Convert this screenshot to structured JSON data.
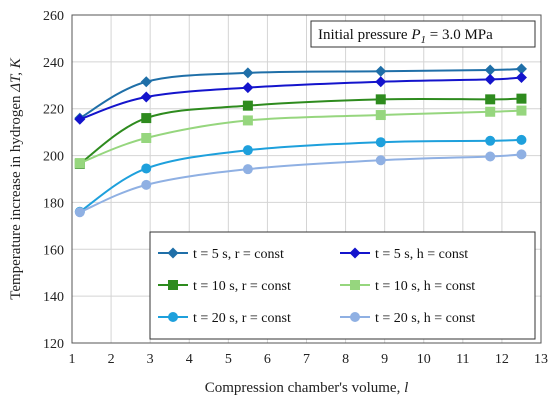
{
  "chart_data": {
    "type": "line",
    "annotation": {
      "prefix": "Initial pressure ",
      "symbol": "P",
      "subscript": "1",
      "suffix": " = 3.0 MPa"
    },
    "xlabel": {
      "text": "Compression chamber's volume, ",
      "unit": "l"
    },
    "ylabel": {
      "text": "Temperature increase in hydrogen ",
      "symbol": "ΔT, K"
    },
    "xlim": [
      1,
      13
    ],
    "ylim": [
      120,
      260
    ],
    "xticks": [
      1,
      2,
      3,
      4,
      5,
      6,
      7,
      8,
      9,
      10,
      11,
      12,
      13
    ],
    "yticks": [
      120,
      140,
      160,
      180,
      200,
      220,
      240,
      260
    ],
    "grid": true,
    "legend_position": "bottom-right",
    "series": [
      {
        "name": "t = 5 s, r = const",
        "color": "#1f6fa8",
        "marker": "diamond",
        "x": [
          1.2,
          2.9,
          5.5,
          8.9,
          11.7,
          12.5
        ],
        "y": [
          216,
          231.5,
          235.3,
          236,
          236.5,
          237
        ]
      },
      {
        "name": "t = 5 s, h = const",
        "color": "#1414cc",
        "marker": "diamond",
        "x": [
          1.2,
          2.9,
          5.5,
          8.9,
          11.7,
          12.5
        ],
        "y": [
          215.5,
          225,
          229,
          231.5,
          232.5,
          233.3
        ]
      },
      {
        "name": "t = 10 s, r = const",
        "color": "#2e8b1e",
        "marker": "square",
        "x": [
          1.2,
          2.9,
          5.5,
          8.9,
          11.7,
          12.5
        ],
        "y": [
          196.5,
          216,
          221.3,
          224,
          224,
          224.3
        ]
      },
      {
        "name": "t = 10 s, h = const",
        "color": "#96d67e",
        "marker": "square",
        "x": [
          1.2,
          2.9,
          5.5,
          8.9,
          11.7,
          12.5
        ],
        "y": [
          196.8,
          207.5,
          215,
          217.3,
          218.7,
          219.2
        ]
      },
      {
        "name": "t = 20 s, r = const",
        "color": "#1ea0dc",
        "marker": "circle",
        "x": [
          1.2,
          2.9,
          5.5,
          8.9,
          11.7,
          12.5
        ],
        "y": [
          176,
          194.5,
          202.3,
          205.7,
          206.3,
          206.7
        ]
      },
      {
        "name": "t =  20 s, h = const",
        "color": "#8fb0e3",
        "marker": "circle",
        "x": [
          1.2,
          2.9,
          5.5,
          8.9,
          11.7,
          12.5
        ],
        "y": [
          175.8,
          187.5,
          194.2,
          198,
          199.6,
          200.5
        ]
      }
    ]
  }
}
